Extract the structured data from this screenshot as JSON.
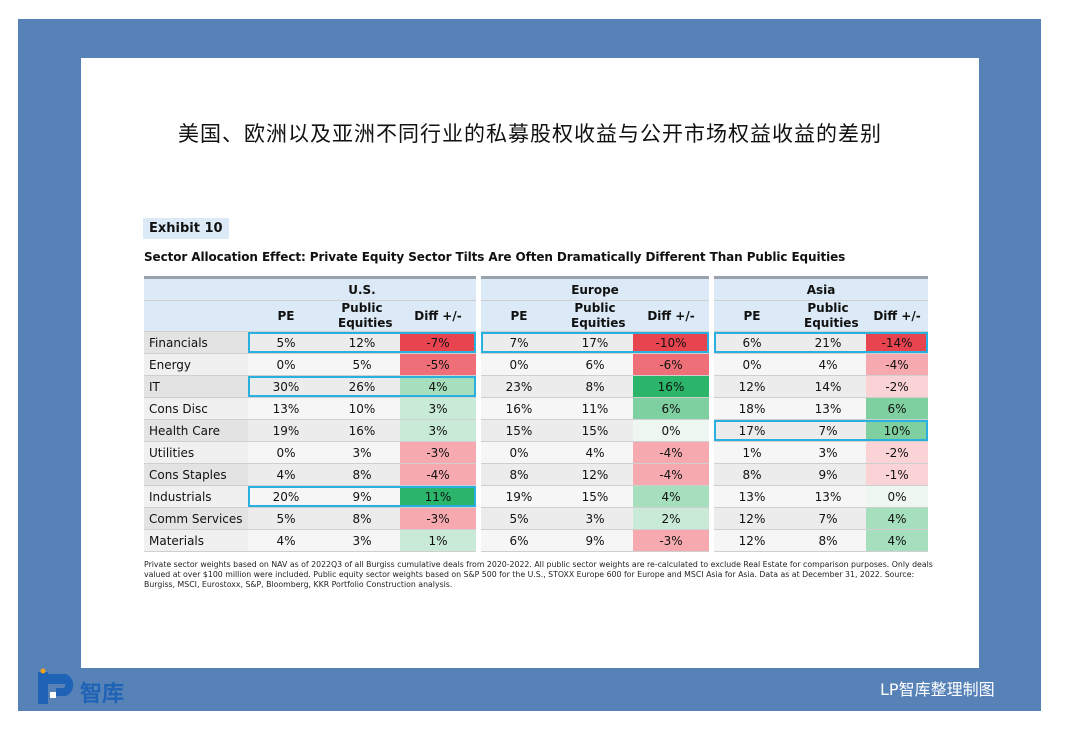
{
  "page": {
    "cn_title": "美国、欧洲以及亚洲不同行业的私募股权收益与公开市场权益收益的差别",
    "credit": "LP智库整理制图",
    "logo_text": "智库",
    "logo_mark": "LP",
    "colors": {
      "frame": "#5682b8",
      "header": "#dbeaf6",
      "highlight": "#2ab0de"
    }
  },
  "chart_data": {
    "type": "table",
    "exhibit": "Exhibit 10",
    "title": "Sector Allocation Effect: Private Equity Sector Tilts Are Often Dramatically Different Than Public Equities",
    "regions": [
      "U.S.",
      "Europe",
      "Asia"
    ],
    "columns": [
      "PE",
      "Public Equities",
      "Diff +/-"
    ],
    "rows": [
      {
        "sector": "Financials",
        "us": [
          "5%",
          "12%",
          "-7%"
        ],
        "eu": [
          "7%",
          "17%",
          "-10%"
        ],
        "asia": [
          "6%",
          "21%",
          "-14%"
        ]
      },
      {
        "sector": "Energy",
        "us": [
          "0%",
          "5%",
          "-5%"
        ],
        "eu": [
          "0%",
          "6%",
          "-6%"
        ],
        "asia": [
          "0%",
          "4%",
          "-4%"
        ]
      },
      {
        "sector": "IT",
        "us": [
          "30%",
          "26%",
          "4%"
        ],
        "eu": [
          "23%",
          "8%",
          "16%"
        ],
        "asia": [
          "12%",
          "14%",
          "-2%"
        ]
      },
      {
        "sector": "Cons Disc",
        "us": [
          "13%",
          "10%",
          "3%"
        ],
        "eu": [
          "16%",
          "11%",
          "6%"
        ],
        "asia": [
          "18%",
          "13%",
          "6%"
        ]
      },
      {
        "sector": "Health Care",
        "us": [
          "19%",
          "16%",
          "3%"
        ],
        "eu": [
          "15%",
          "15%",
          "0%"
        ],
        "asia": [
          "17%",
          "7%",
          "10%"
        ]
      },
      {
        "sector": "Utilities",
        "us": [
          "0%",
          "3%",
          "-3%"
        ],
        "eu": [
          "0%",
          "4%",
          "-4%"
        ],
        "asia": [
          "1%",
          "3%",
          "-2%"
        ]
      },
      {
        "sector": "Cons Staples",
        "us": [
          "4%",
          "8%",
          "-4%"
        ],
        "eu": [
          "8%",
          "12%",
          "-4%"
        ],
        "asia": [
          "8%",
          "9%",
          "-1%"
        ]
      },
      {
        "sector": "Industrials",
        "us": [
          "20%",
          "9%",
          "11%"
        ],
        "eu": [
          "19%",
          "15%",
          "4%"
        ],
        "asia": [
          "13%",
          "13%",
          "0%"
        ]
      },
      {
        "sector": "Comm Services",
        "us": [
          "5%",
          "8%",
          "-3%"
        ],
        "eu": [
          "5%",
          "3%",
          "2%"
        ],
        "asia": [
          "12%",
          "7%",
          "4%"
        ]
      },
      {
        "sector": "Materials",
        "us": [
          "4%",
          "3%",
          "1%"
        ],
        "eu": [
          "6%",
          "9%",
          "-3%"
        ],
        "asia": [
          "12%",
          "8%",
          "4%"
        ]
      }
    ],
    "highlighted_rows": {
      "us": [
        "Financials",
        "IT",
        "Industrials"
      ],
      "eu": [
        "Financials"
      ],
      "asia": [
        "Financials",
        "Health Care"
      ]
    },
    "footnote": "Private sector weights based on NAV as of 2022Q3 of all Burgiss cumulative deals from 2020-2022. All public sector weights are re-calculated to exclude Real Estate for comparison purposes. Only deals valued at over $100 million were included. Public equity sector weights based on S&P 500 for the U.S., STOXX Europe 600 for Europe and MSCI Asia for Asia. Data as at December 31, 2022. Source: Burgiss, MSCI, Eurostoxx, S&P, Bloomberg, KKR Portfolio Construction analysis."
  }
}
